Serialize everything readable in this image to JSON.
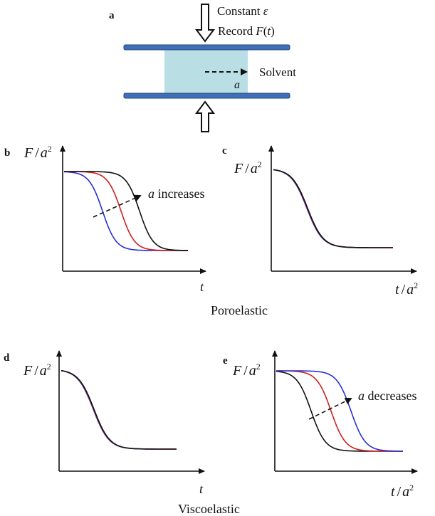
{
  "panel_a": {
    "label": "a",
    "text_line1_prefix": "Constant ",
    "text_line1_symbol": "ε",
    "text_line2_prefix": "Record ",
    "text_line2_func": "F",
    "text_line2_paren_open": "(",
    "text_line2_var": "t",
    "text_line2_paren_close": ")",
    "solvent_label": "Solvent",
    "radius_label": "a",
    "colors": {
      "plate": "#3f6fb6",
      "plate_edge": "#27457b",
      "gel": "#b9dfe5",
      "arrow_stroke": "#111111"
    }
  },
  "panel_b": {
    "label": "b",
    "ylabel_F": "F",
    "ylabel_slash": "/",
    "ylabel_a": "a",
    "ylabel_exp": "2",
    "xlabel_t": "t",
    "annotation_a": "a",
    "annotation_text": " increases"
  },
  "panel_c": {
    "label": "c",
    "ylabel_F": "F",
    "ylabel_slash": "/",
    "ylabel_a": "a",
    "ylabel_exp": "2",
    "xlabel_t": "t",
    "xlabel_slash": "/",
    "xlabel_a": "a",
    "xlabel_exp": "2"
  },
  "section_poroelastic": "Poroelastic",
  "panel_d": {
    "label": "d",
    "ylabel_F": "F",
    "ylabel_slash": "/",
    "ylabel_a": "a",
    "ylabel_exp": "2",
    "xlabel_t": "t"
  },
  "panel_e": {
    "label": "e",
    "ylabel_F": "F",
    "ylabel_slash": "/",
    "ylabel_a": "a",
    "ylabel_exp": "2",
    "xlabel_t": "t",
    "xlabel_slash": "/",
    "xlabel_a": "a",
    "xlabel_exp": "2",
    "annotation_a": "a",
    "annotation_text": " decreases"
  },
  "section_viscoelastic": "Viscoelastic",
  "curve_colors": {
    "blue": "#2730d6",
    "red": "#d01f1f",
    "black": "#111111"
  }
}
